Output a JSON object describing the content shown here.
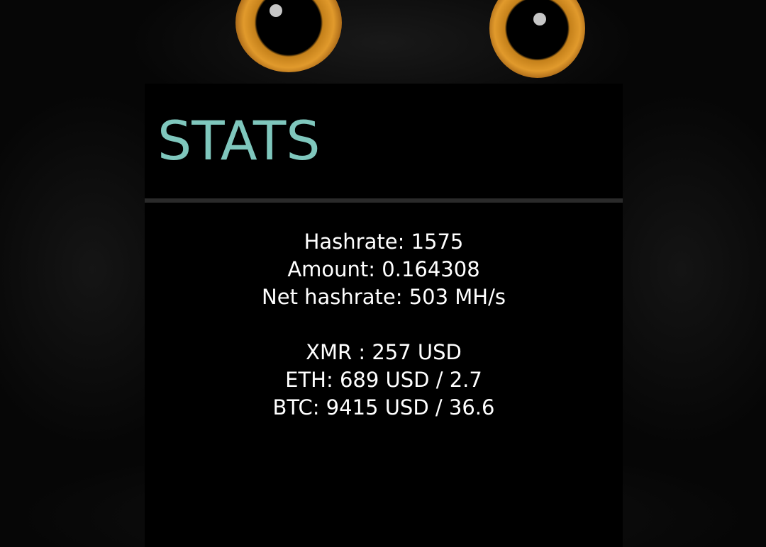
{
  "panel": {
    "title": "STATS"
  },
  "stats": {
    "mining": [
      "Hashrate: 1575",
      "Amount: 0.164308",
      "Net hashrate: 503 MH/s"
    ],
    "prices": [
      "XMR : 257 USD",
      "ETH: 689 USD / 2.7",
      "BTC: 9415 USD / 36.6"
    ]
  },
  "colors": {
    "title": "#7fc7bd",
    "text": "#ffffff",
    "panel_background": "#000000",
    "divider": "#2a2a2a",
    "owl_eye": "#e19a2c"
  },
  "icons": {
    "background": "owl-background-image"
  }
}
